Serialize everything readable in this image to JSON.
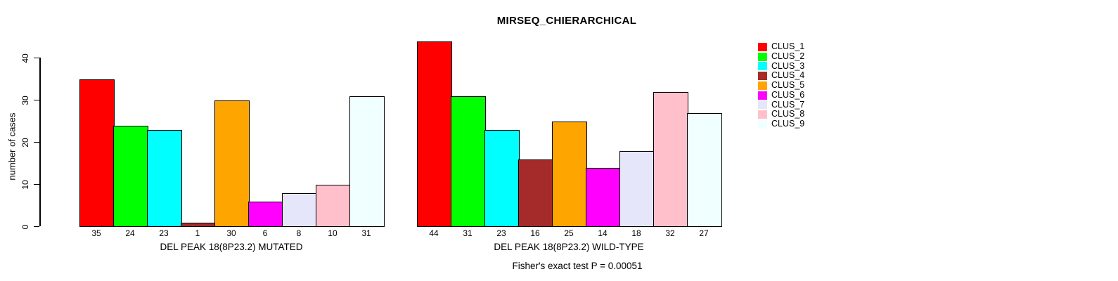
{
  "chart_data": {
    "type": "bar",
    "title": "MIRSEQ_CHIERARCHICAL",
    "ylabel": "number of cases",
    "ylim": [
      0,
      40
    ],
    "yticks": [
      0,
      10,
      20,
      30,
      40
    ],
    "grid": false,
    "legend_position": "right-outside",
    "categories": [
      "CLUS_1",
      "CLUS_2",
      "CLUS_3",
      "CLUS_4",
      "CLUS_5",
      "CLUS_6",
      "CLUS_7",
      "CLUS_8",
      "CLUS_9"
    ],
    "colors": [
      "#FF0000",
      "#00FF00",
      "#00FFFF",
      "#A52A2A",
      "#FFA500",
      "#FF00FF",
      "#E6E6FA",
      "#FFC0CB",
      "#F0FFFF"
    ],
    "panels": [
      {
        "xlabel": "DEL PEAK 18(8P23.2) MUTATED",
        "values": [
          35,
          24,
          23,
          1,
          30,
          6,
          8,
          10,
          31
        ]
      },
      {
        "xlabel": "DEL PEAK 18(8P23.2) WILD-TYPE",
        "values": [
          44,
          31,
          23,
          16,
          25,
          14,
          18,
          32,
          27
        ]
      }
    ],
    "annotation": "Fisher's exact test P = 0.00051",
    "axis_color": "#000000",
    "background_color": "#FFFFFF"
  }
}
